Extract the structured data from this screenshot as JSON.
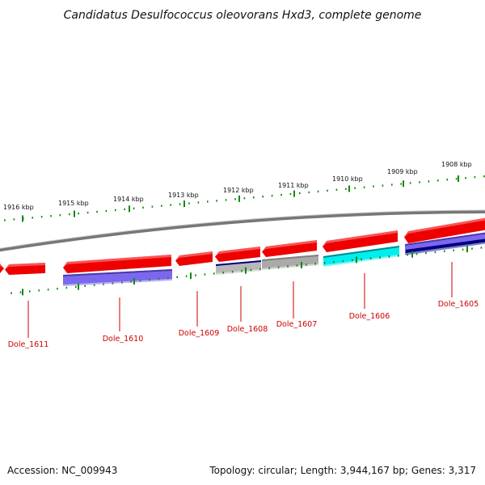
{
  "title": "Candidatus Desulfococcus oleovorans Hxd3, complete genome",
  "footer": {
    "accession": "Accession: NC_009943",
    "summary": "Topology: circular; Length: 3,944,167 bp; Genes: 3,317"
  },
  "colors": {
    "cds_strand_forward": "#ee0000",
    "cds_strand_reverse": "#7b68ee",
    "rna_dark": "#000080",
    "pseudo_gray": "#aaaaaa",
    "highlight_cyan": "#00eeee",
    "backbone": "#888888",
    "tick": "#118811",
    "label": "#cc0000"
  },
  "scale": {
    "unit": "kbp",
    "labels": [
      "1916 kbp",
      "1915 kbp",
      "1914 kbp",
      "1913 kbp",
      "1912 kbp",
      "1911 kbp",
      "1910 kbp",
      "1909 kbp",
      "1908 kbp"
    ]
  },
  "genes": [
    {
      "label": "Dole_1611"
    },
    {
      "label": "Dole_1610"
    },
    {
      "label": "Dole_1609"
    },
    {
      "label": "Dole_1608"
    },
    {
      "label": "Dole_1607"
    },
    {
      "label": "Dole_1606"
    },
    {
      "label": "Dole_1605"
    }
  ]
}
